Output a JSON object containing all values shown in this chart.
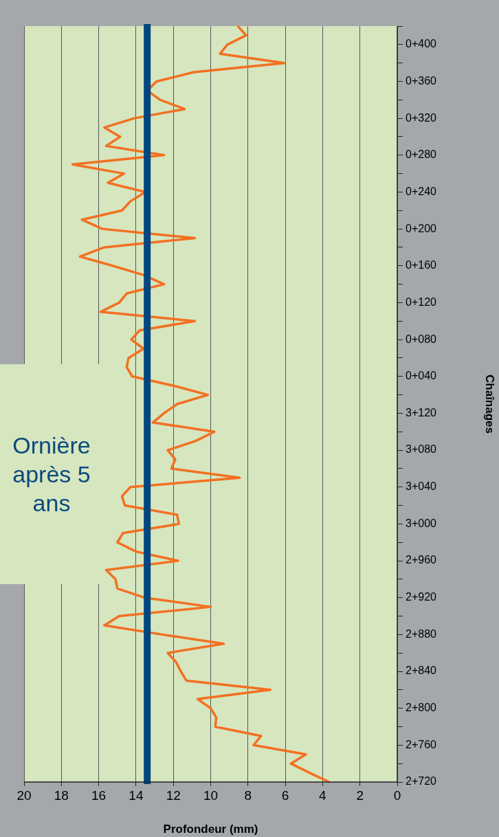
{
  "chart_data": {
    "type": "line",
    "orientation": "horizontal",
    "title": "Ornière après 5 ans",
    "xlabel": "Profondeur (mm)",
    "ylabel": "Chaînages",
    "categories": [
      null,
      null,
      "0+400",
      null,
      null,
      null,
      "0+360",
      null,
      null,
      null,
      "0+320",
      null,
      null,
      null,
      "0+280",
      null,
      null,
      null,
      "0+240",
      null,
      null,
      null,
      "0+200",
      null,
      null,
      null,
      "0+160",
      null,
      null,
      null,
      "0+120",
      null,
      null,
      null,
      "0+080",
      null,
      null,
      null,
      "0+040",
      null,
      null,
      null,
      "3+120",
      null,
      null,
      null,
      "3+080",
      null,
      null,
      null,
      "3+040",
      null,
      null,
      null,
      "3+000",
      null,
      null,
      null,
      "2+960",
      null,
      null,
      null,
      "2+920",
      null,
      null,
      null,
      "2+880",
      null,
      null,
      null,
      "2+840",
      null,
      null,
      null,
      "2+800",
      null,
      null,
      null,
      "2+760",
      null,
      null,
      null,
      "2+720"
    ],
    "series": [
      {
        "color": "#f37021",
        "values": [
          8.55,
          8.1,
          9.1,
          9.5,
          6.05,
          10.9,
          12.9,
          13.4,
          12.7,
          11.4,
          14.1,
          15.7,
          14.85,
          15.6,
          12.5,
          17.4,
          14.65,
          15.5,
          13.5,
          14.3,
          14.75,
          16.9,
          15.8,
          10.85,
          15.7,
          17.0,
          15.25,
          13.6,
          12.5,
          14.5,
          14.9,
          15.9,
          10.85,
          13.8,
          14.25,
          13.6,
          14.4,
          14.5,
          14.2,
          12.0,
          10.15,
          11.8,
          12.5,
          13.1,
          9.8,
          10.8,
          12.3,
          11.9,
          12.1,
          8.45,
          14.3,
          14.75,
          14.6,
          11.8,
          11.7,
          14.7,
          15.0,
          14.0,
          11.75,
          15.6,
          15.1,
          15.0,
          13.55,
          10.0,
          14.9,
          15.7,
          12.6,
          9.3,
          12.3,
          11.85,
          11.6,
          11.3,
          6.8,
          10.7,
          10.0,
          9.7,
          9.75,
          7.3,
          7.7,
          4.9,
          5.7,
          4.7,
          3.65
        ]
      }
    ],
    "ref_lines": [
      {
        "axis": "x",
        "value": 13.4,
        "color": "#00467f"
      }
    ],
    "xlim": [
      20,
      0
    ],
    "xticks": [
      20,
      18,
      16,
      14,
      12,
      10,
      8,
      6,
      4,
      2,
      0
    ],
    "grid": "x",
    "legend": false,
    "marker": "none",
    "line_style": "solid"
  }
}
